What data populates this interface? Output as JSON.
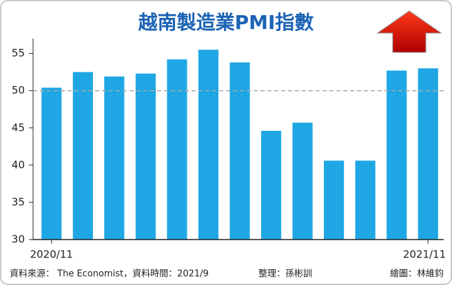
{
  "chart_data": {
    "type": "bar",
    "title": "越南製造業PMI指數",
    "categories": [
      "2020/11",
      null,
      null,
      null,
      null,
      null,
      null,
      null,
      null,
      null,
      null,
      null,
      "2021/11"
    ],
    "values": [
      50.4,
      52.5,
      51.9,
      52.3,
      54.2,
      55.5,
      53.8,
      44.6,
      45.7,
      40.6,
      40.6,
      52.7,
      53.0
    ],
    "color": "#1ea7e4",
    "ylim": [
      30,
      57
    ],
    "yticks": [
      30,
      35,
      40,
      45,
      50,
      55
    ],
    "reference_line": 50,
    "source": "資料來源： The Economist，資料時間：2021/9",
    "editor": "整理：孫彬訓",
    "graphic": "繪圖：林維鈞"
  }
}
